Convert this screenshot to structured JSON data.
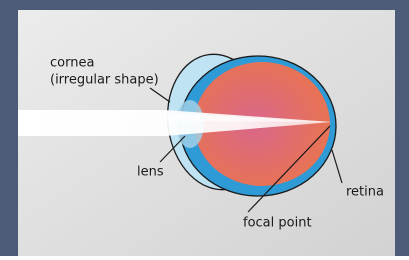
{
  "labels": {
    "cornea": [
      "cornea",
      "(irregular shape)"
    ],
    "lens": "lens",
    "retina": "retina",
    "focal_point": "focal point"
  }
}
